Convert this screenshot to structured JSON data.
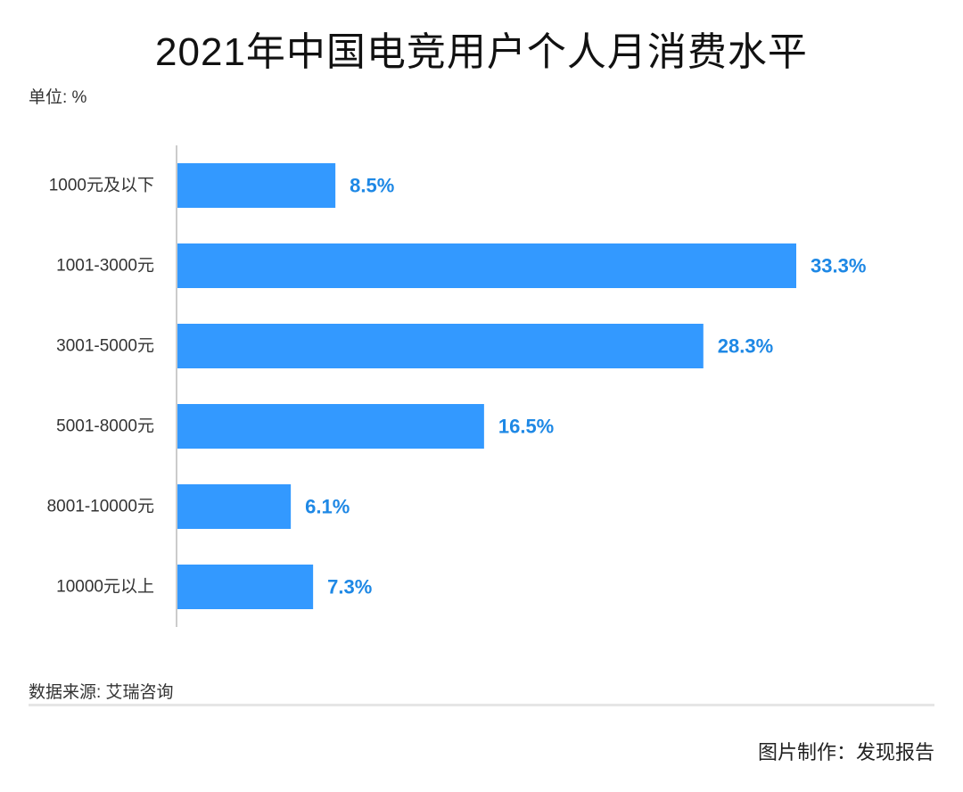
{
  "header": {
    "title": "2021年中国电竞用户个人月消费水平",
    "unit_label": "单位: %"
  },
  "footer": {
    "source": "数据来源: 艾瑞咨询",
    "credit": "图片制作：发现报告"
  },
  "colors": {
    "bar": "#3399ff",
    "value_label": "#1e88e5",
    "axis": "#bbbbbb"
  },
  "chart_data": {
    "type": "bar",
    "orientation": "horizontal",
    "categories": [
      "1000元及以下",
      "1001-3000元",
      "3001-5000元",
      "5001-8000元",
      "8001-10000元",
      "10000元以上"
    ],
    "values": [
      8.5,
      33.3,
      28.3,
      16.5,
      6.1,
      7.3
    ],
    "value_labels": [
      "8.5%",
      "33.3%",
      "28.3%",
      "16.5%",
      "6.1%",
      "7.3%"
    ],
    "title": "2021年中国电竞用户个人月消费水平",
    "xlabel": "",
    "ylabel": "",
    "unit": "%",
    "xlim": [
      0,
      33.3
    ],
    "grid": false,
    "legend": "none"
  }
}
